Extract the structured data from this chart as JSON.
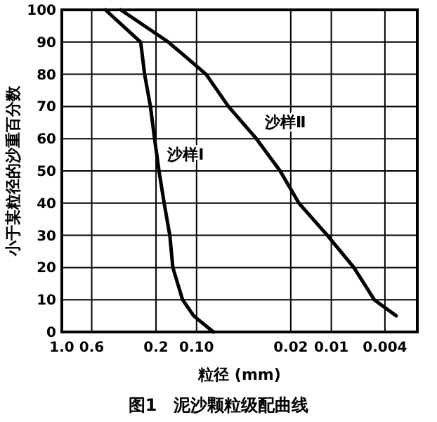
{
  "chart_data": {
    "type": "line",
    "title": "图1　泥沙颗粒级配曲线",
    "xlabel": "粒径 (mm)",
    "ylabel": "小于某粒径的沙重百分数",
    "log": "x",
    "grid": true,
    "xlim": [
      1,
      0.0023
    ],
    "xticks": [
      {
        "value": 1,
        "label": "1.0"
      },
      0.6,
      0.2,
      {
        "value": 0.1,
        "label": "0.10"
      },
      0.02,
      0.01,
      0.004
    ],
    "ylim": [
      0,
      100
    ],
    "yticks": [
      0,
      10,
      20,
      30,
      40,
      50,
      60,
      70,
      80,
      90,
      100
    ],
    "series": [
      {
        "name": "沙样Ⅰ",
        "color": "#000000",
        "x": [
          0.475,
          0.26,
          0.243,
          0.22,
          0.205,
          0.19,
          0.174,
          0.158,
          0.15,
          0.127,
          0.105,
          0.075
        ],
        "values": [
          100,
          90,
          80,
          70,
          60,
          50,
          40,
          30,
          20,
          10,
          5,
          0
        ]
      },
      {
        "name": "沙样Ⅱ",
        "color": "#000000",
        "x": [
          0.365,
          0.162,
          0.085,
          0.058,
          0.036,
          0.024,
          0.0174,
          0.0107,
          0.0068,
          0.0048,
          0.0033
        ],
        "values": [
          100,
          90,
          80,
          70,
          60,
          50,
          40,
          30,
          20,
          10,
          5
        ]
      }
    ]
  }
}
